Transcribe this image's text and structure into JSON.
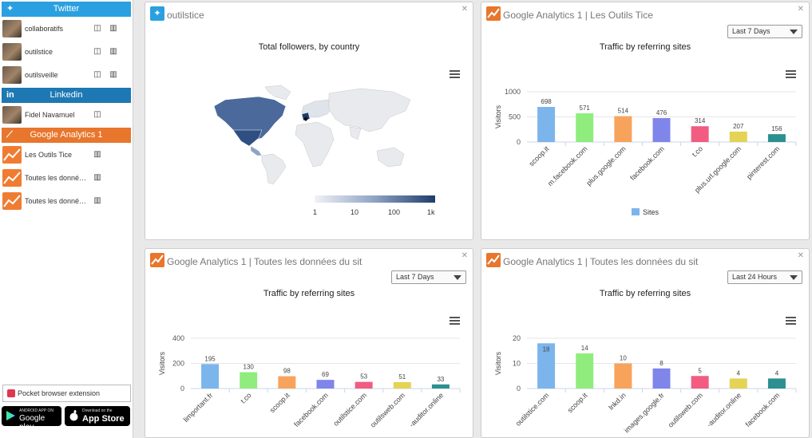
{
  "sidebar": {
    "twitter": {
      "title": "Twitter",
      "color": "#2ba0e0",
      "accounts": [
        {
          "name": "collaboratifs"
        },
        {
          "name": "outilstice"
        },
        {
          "name": "outilsveille"
        }
      ]
    },
    "linkedin": {
      "title": "Linkedin",
      "color": "#1d78b3",
      "accounts": [
        {
          "name": "Fidel Navamuel"
        }
      ]
    },
    "ga": {
      "title": "Google Analytics 1",
      "color": "#e8762d",
      "accounts": [
        {
          "name": "Les Outils Tice"
        },
        {
          "name": "Toutes les donné…"
        },
        {
          "name": "Toutes les donné…"
        }
      ]
    },
    "pocket": "Pocket browser extension",
    "googleplay": {
      "small": "ANDROID APP ON",
      "big": "Google play"
    },
    "appstore": {
      "small": "Download on the",
      "big": "App Store"
    }
  },
  "panels": {
    "map": {
      "title": "outilstice",
      "chart_title": "Total followers, by country",
      "legend_ticks": [
        "1",
        "10",
        "100",
        "1k"
      ]
    },
    "p2": {
      "title": "Google Analytics 1 | Les Outils Tice",
      "range": "Last 7 Days",
      "chart_title": "Traffic by referring sites",
      "legend": "Sites"
    },
    "p3": {
      "title": "Google Analytics 1 | Toutes les données du sit",
      "range": "Last 7 Days",
      "chart_title": "Traffic by referring sites"
    },
    "p4": {
      "title": "Google Analytics 1 | Toutes les données du sit",
      "range": "Last 24 Hours",
      "chart_title": "Traffic by referring sites"
    }
  },
  "colors": {
    "twitter": "#2ba0e0",
    "ga": "#e8762d",
    "map_dark": "#1f3c6b",
    "map_light": "#f0f2f6"
  },
  "chart_data": [
    {
      "type": "bar",
      "ylabel": "Visitors",
      "ylim": [
        0,
        1000
      ],
      "yticks": [
        0,
        500,
        1000
      ],
      "categories": [
        "scoop.it",
        "m.facebook.com",
        "plus.google.com",
        "facebook.com",
        "t.co",
        "plus.url.google.com",
        "pinterest.com"
      ],
      "values": [
        698,
        571,
        514,
        476,
        314,
        207,
        156
      ],
      "colors": [
        "#7cb5ec",
        "#90ed7d",
        "#f7a35c",
        "#8085e9",
        "#f15c80",
        "#e4d354",
        "#2b908f"
      ],
      "legend": "Sites"
    },
    {
      "type": "bar",
      "ylabel": "Visitors",
      "ylim": [
        0,
        400
      ],
      "yticks": [
        0,
        200,
        400
      ],
      "categories": [
        "limportant.fr",
        "t.co",
        "scoop.it",
        "facebook.com",
        "outilstice.com",
        "outilsweb.com",
        "-auditor.online"
      ],
      "values": [
        195,
        130,
        98,
        69,
        53,
        51,
        33
      ],
      "colors": [
        "#7cb5ec",
        "#90ed7d",
        "#f7a35c",
        "#8085e9",
        "#f15c80",
        "#e4d354",
        "#2b908f"
      ]
    },
    {
      "type": "bar",
      "ylabel": "Visitors",
      "ylim": [
        0,
        20
      ],
      "yticks": [
        0,
        10,
        20
      ],
      "categories": [
        "outilstice.com",
        "scoop.it",
        "lnkd.in",
        "images.google.fr",
        "outilsweb.com",
        "-auditor.online",
        "facebook.com"
      ],
      "values": [
        18,
        14,
        10,
        8,
        5,
        4,
        4
      ],
      "colors": [
        "#7cb5ec",
        "#90ed7d",
        "#f7a35c",
        "#8085e9",
        "#f15c80",
        "#e4d354",
        "#2b908f"
      ]
    }
  ]
}
